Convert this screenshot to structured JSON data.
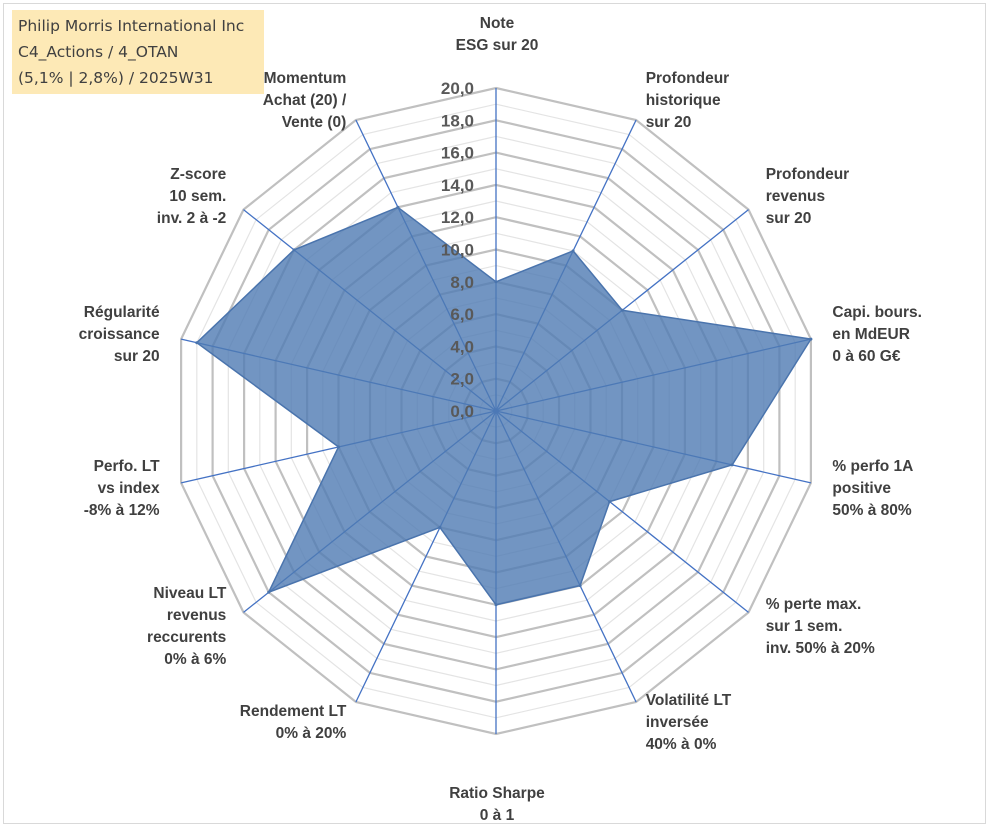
{
  "info_box": {
    "line1": "Philip Morris International Inc",
    "line2": "C4_Actions / 4_OTAN",
    "line3": "(5,1% | 2,8%) / 2025W31"
  },
  "colors": {
    "fill": "#4f7ab3",
    "stroke": "#4a74ad",
    "spoke": "#4472c4",
    "major_grid": "#c0c0c0",
    "minor_grid": "#e4e4e4",
    "info_box_bg": "#fde9b6"
  },
  "chart_data": {
    "type": "radar",
    "rmin": 0,
    "rmax": 20,
    "major_ticks": [
      "0,0",
      "2,0",
      "4,0",
      "6,0",
      "8,0",
      "10,0",
      "12,0",
      "14,0",
      "16,0",
      "18,0",
      "20,0"
    ],
    "minor_step": 1,
    "axes": [
      {
        "label": [
          "Note",
          "ESG sur 20"
        ],
        "value": 8
      },
      {
        "label": [
          "Profondeur",
          "historique",
          "sur 20"
        ],
        "value": 11
      },
      {
        "label": [
          "Profondeur",
          "revenus",
          "sur 20"
        ],
        "value": 10
      },
      {
        "label": [
          "Capi. bours.",
          "en MdEUR",
          "0 à 60 G€"
        ],
        "value": 20
      },
      {
        "label": [
          "% perfo 1A",
          "positive",
          "50% à 80%"
        ],
        "value": 15
      },
      {
        "label": [
          "% perte max.",
          "sur 1 sem.",
          "inv. 50% à 20%"
        ],
        "value": 9
      },
      {
        "label": [
          "Volatilité LT",
          "inversée",
          "40% à 0%"
        ],
        "value": 12
      },
      {
        "label": [
          "Ratio Sharpe",
          "0 à 1"
        ],
        "value": 12
      },
      {
        "label": [
          "Rendement LT",
          "0% à 20%"
        ],
        "value": 8
      },
      {
        "label": [
          "Niveau LT",
          "revenus",
          "reccurents",
          "0% à 6%"
        ],
        "value": 18
      },
      {
        "label": [
          "Perfo. LT",
          "vs index",
          "-8% à 12%"
        ],
        "value": 10
      },
      {
        "label": [
          "Régularité",
          "croissance",
          "sur 20"
        ],
        "value": 19
      },
      {
        "label": [
          "Z-score",
          "10 sem.",
          "inv. 2 à -2"
        ],
        "value": 16
      },
      {
        "label": [
          "Momentum",
          "Achat (20) /",
          "Vente (0)"
        ],
        "value": 14
      }
    ]
  }
}
